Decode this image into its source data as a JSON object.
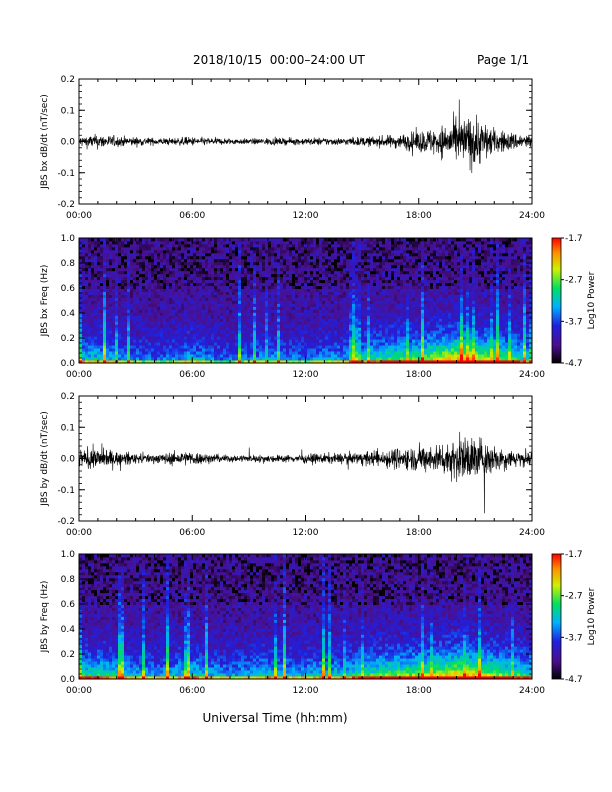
{
  "header": {
    "title": "2018/10/15  00:00–24:00 UT",
    "page": "Page 1/1"
  },
  "xlabel": "Universal Time (hh:mm)",
  "colors": {
    "trace": "#000000",
    "background": "#ffffff"
  },
  "chart_data": [
    {
      "type": "line",
      "ylabel": "JBS bx dB/dt (nT/sec)",
      "xlim": [
        0,
        24
      ],
      "ylim": [
        -0.2,
        0.2
      ],
      "xticks": [
        "00:00",
        "06:00",
        "12:00",
        "18:00",
        "24:00"
      ],
      "yticks": [
        "-0.2",
        "-0.1",
        "0.0",
        "0.1",
        "0.2"
      ],
      "series": [
        {
          "x": [
            0,
            1,
            2,
            3,
            4,
            5,
            6,
            7,
            8,
            9,
            10,
            11,
            12,
            13,
            14,
            15,
            16,
            17,
            18,
            19,
            20,
            21,
            22,
            23,
            24
          ],
          "amplitude": [
            0.03,
            0.04,
            0.03,
            0.025,
            0.02,
            0.02,
            0.025,
            0.02,
            0.018,
            0.015,
            0.02,
            0.018,
            0.02,
            0.022,
            0.02,
            0.025,
            0.03,
            0.04,
            0.06,
            0.08,
            0.12,
            0.15,
            0.07,
            0.05,
            0.04
          ]
        }
      ]
    },
    {
      "type": "heatmap",
      "ylabel": "JBS bx Freq (Hz)",
      "colorbar_label": "Log10 Power",
      "colorbar_ticks": [
        "-1.7",
        "-2.7",
        "-3.7",
        "-4.7"
      ],
      "zlim": [
        -4.7,
        -1.7
      ],
      "xlim": [
        0,
        24
      ],
      "ylim": [
        0,
        1
      ],
      "xticks": [
        "00:00",
        "06:00",
        "12:00",
        "18:00",
        "24:00"
      ],
      "yticks": [
        "0.0",
        "0.2",
        "0.4",
        "0.6",
        "0.8",
        "1.0"
      ],
      "activity": [
        0.4,
        0.45,
        0.35,
        0.3,
        0.25,
        0.3,
        0.4,
        0.3,
        0.25,
        0.3,
        0.35,
        0.3,
        0.3,
        0.35,
        0.35,
        0.45,
        0.55,
        0.6,
        0.6,
        0.75,
        0.85,
        0.8,
        0.65,
        0.55,
        0.45
      ]
    },
    {
      "type": "line",
      "ylabel": "JBS by dB/dt (nT/sec)",
      "xlim": [
        0,
        24
      ],
      "ylim": [
        -0.2,
        0.2
      ],
      "xticks": [
        "00:00",
        "06:00",
        "12:00",
        "18:00",
        "24:00"
      ],
      "yticks": [
        "-0.2",
        "-0.1",
        "0.0",
        "0.1",
        "0.2"
      ],
      "series": [
        {
          "x": [
            0,
            1,
            2,
            3,
            4,
            5,
            6,
            7,
            8,
            9,
            10,
            11,
            12,
            13,
            14,
            15,
            16,
            17,
            18,
            19,
            20,
            21,
            22,
            23,
            24
          ],
          "amplitude": [
            0.05,
            0.06,
            0.04,
            0.03,
            0.025,
            0.035,
            0.04,
            0.025,
            0.02,
            0.02,
            0.022,
            0.02,
            0.025,
            0.028,
            0.03,
            0.035,
            0.05,
            0.06,
            0.07,
            0.08,
            0.12,
            0.13,
            0.08,
            0.05,
            0.04
          ]
        }
      ]
    },
    {
      "type": "heatmap",
      "ylabel": "JBS by Freq (Hz)",
      "colorbar_label": "Log10 Power",
      "colorbar_ticks": [
        "-1.7",
        "-2.7",
        "-3.7",
        "-4.7"
      ],
      "zlim": [
        -4.7,
        -1.7
      ],
      "xlim": [
        0,
        24
      ],
      "ylim": [
        0,
        1
      ],
      "xticks": [
        "00:00",
        "06:00",
        "12:00",
        "18:00",
        "24:00"
      ],
      "yticks": [
        "0.0",
        "0.2",
        "0.4",
        "0.6",
        "0.8",
        "1.0"
      ],
      "activity": [
        0.5,
        0.55,
        0.45,
        0.4,
        0.35,
        0.4,
        0.5,
        0.4,
        0.35,
        0.4,
        0.45,
        0.4,
        0.4,
        0.45,
        0.45,
        0.55,
        0.6,
        0.65,
        0.65,
        0.75,
        0.85,
        0.8,
        0.7,
        0.6,
        0.5
      ]
    }
  ]
}
